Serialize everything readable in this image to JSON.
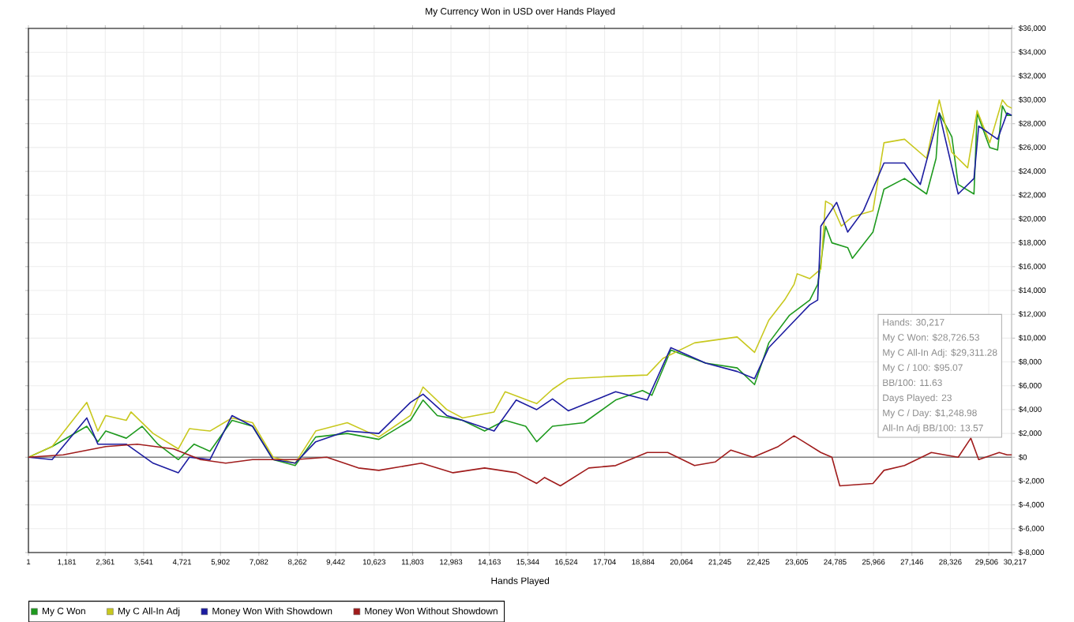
{
  "chart_data": {
    "type": "line",
    "title": "My Currency Won in USD over Hands Played",
    "xlabel": "Hands Played",
    "xlim": [
      1,
      30217
    ],
    "xticks": [
      {
        "value": 1,
        "label": "1"
      },
      {
        "value": 1181,
        "label": "1,181"
      },
      {
        "value": 2361,
        "label": "2,361"
      },
      {
        "value": 3541,
        "label": "3,541"
      },
      {
        "value": 4721,
        "label": "4,721"
      },
      {
        "value": 5902,
        "label": "5,902"
      },
      {
        "value": 7082,
        "label": "7,082"
      },
      {
        "value": 8262,
        "label": "8,262"
      },
      {
        "value": 9442,
        "label": "9,442"
      },
      {
        "value": 10623,
        "label": "10,623"
      },
      {
        "value": 11803,
        "label": "11,803"
      },
      {
        "value": 12983,
        "label": "12,983"
      },
      {
        "value": 14163,
        "label": "14,163"
      },
      {
        "value": 15344,
        "label": "15,344"
      },
      {
        "value": 16524,
        "label": "16,524"
      },
      {
        "value": 17704,
        "label": "17,704"
      },
      {
        "value": 18884,
        "label": "18,884"
      },
      {
        "value": 20064,
        "label": "20,064"
      },
      {
        "value": 21245,
        "label": "21,245"
      },
      {
        "value": 22425,
        "label": "22,425"
      },
      {
        "value": 23605,
        "label": "23,605"
      },
      {
        "value": 24785,
        "label": "24,785"
      },
      {
        "value": 25966,
        "label": "25,966"
      },
      {
        "value": 27146,
        "label": "27,146"
      },
      {
        "value": 28326,
        "label": "28,326"
      },
      {
        "value": 29506,
        "label": "29,506"
      },
      {
        "value": 30217,
        "label": "30,217"
      }
    ],
    "ylim": [
      -8000,
      36000
    ],
    "yticks": [
      {
        "value": -8000,
        "label": "$-8,000"
      },
      {
        "value": -6000,
        "label": "$-6,000"
      },
      {
        "value": -4000,
        "label": "$-4,000"
      },
      {
        "value": -2000,
        "label": "$-2,000"
      },
      {
        "value": 0,
        "label": "$0"
      },
      {
        "value": 2000,
        "label": "$2,000"
      },
      {
        "value": 4000,
        "label": "$4,000"
      },
      {
        "value": 6000,
        "label": "$6,000"
      },
      {
        "value": 8000,
        "label": "$8,000"
      },
      {
        "value": 10000,
        "label": "$10,000"
      },
      {
        "value": 12000,
        "label": "$12,000"
      },
      {
        "value": 14000,
        "label": "$14,000"
      },
      {
        "value": 16000,
        "label": "$16,000"
      },
      {
        "value": 18000,
        "label": "$18,000"
      },
      {
        "value": 20000,
        "label": "$20,000"
      },
      {
        "value": 22000,
        "label": "$22,000"
      },
      {
        "value": 24000,
        "label": "$24,000"
      },
      {
        "value": 26000,
        "label": "$26,000"
      },
      {
        "value": 28000,
        "label": "$28,000"
      },
      {
        "value": 30000,
        "label": "$30,000"
      },
      {
        "value": 32000,
        "label": "$32,000"
      },
      {
        "value": 34000,
        "label": "$34,000"
      },
      {
        "value": 36000,
        "label": "$36,000"
      }
    ],
    "grid": true,
    "legend": "bottom",
    "marker": "none",
    "line_style": "solid",
    "ref_lines": [
      {
        "axis": "y",
        "value": 0,
        "color": "#808080"
      }
    ],
    "annotations": [
      "Hands: 30,217",
      "My C Won: $28,726.53",
      "My C All-In Adj: $29,311.28",
      "My C / 100: $95.07",
      "BB/100: 11.63",
      "Days Played: 23",
      "My C / Day: $1,248.98",
      "All-In Adj BB/100: 13.57"
    ],
    "series": [
      {
        "name": "My C Won",
        "color": "#1f9a1f",
        "x": [
          1,
          728,
          1795,
          2134,
          2377,
          3007,
          3492,
          3977,
          4608,
          5093,
          5578,
          6257,
          6887,
          7518,
          8197,
          8827,
          9797,
          10767,
          11737,
          12125,
          12562,
          13338,
          14017,
          14647,
          15278,
          15617,
          16102,
          17072,
          18042,
          18867,
          19158,
          19740,
          20807,
          21777,
          22310,
          22747,
          23377,
          24008,
          24250,
          24347,
          24493,
          24687,
          25172,
          25317,
          25948,
          26287,
          26918,
          27597,
          27888,
          27985,
          28373,
          28567,
          29052,
          29149,
          29537,
          29779,
          29925,
          30070,
          30217
        ],
        "values": [
          0,
          900,
          2600,
          1300,
          2200,
          1600,
          2600,
          1100,
          -200,
          1100,
          500,
          3100,
          2600,
          -200,
          -700,
          1700,
          2000,
          1500,
          3100,
          4800,
          3500,
          3100,
          2200,
          3100,
          2600,
          1300,
          2600,
          2900,
          4800,
          5600,
          5200,
          9000,
          7900,
          7500,
          6100,
          9600,
          11900,
          13200,
          14500,
          16300,
          19400,
          18000,
          17600,
          16700,
          18900,
          22500,
          23400,
          22100,
          25100,
          28900,
          26900,
          22900,
          22100,
          28900,
          26000,
          25800,
          29500,
          28700,
          28700
        ]
      },
      {
        "name": "My C All-In Adj",
        "color": "#c8c81e",
        "x": [
          1,
          728,
          1795,
          2134,
          2377,
          3007,
          3153,
          3832,
          4608,
          4947,
          5578,
          6257,
          6887,
          7518,
          8197,
          8827,
          9797,
          10767,
          11737,
          12125,
          12853,
          13338,
          14308,
          14647,
          15617,
          16102,
          16587,
          18042,
          19012,
          19497,
          20467,
          21777,
          22310,
          22747,
          23232,
          23523,
          23620,
          24008,
          24347,
          24493,
          24687,
          24978,
          25317,
          25948,
          26287,
          26918,
          27597,
          27985,
          28373,
          28858,
          29149,
          29537,
          29925,
          30070,
          30217
        ],
        "values": [
          0,
          900,
          4600,
          2200,
          3500,
          3100,
          3800,
          2000,
          700,
          2400,
          2200,
          3300,
          2900,
          0,
          -500,
          2200,
          2900,
          1700,
          3500,
          5900,
          4000,
          3300,
          3800,
          5500,
          4500,
          5700,
          6600,
          6800,
          6900,
          8300,
          9600,
          10100,
          8800,
          11500,
          13200,
          14500,
          15400,
          15000,
          15800,
          21500,
          21200,
          19400,
          20200,
          20700,
          26400,
          26700,
          25100,
          30000,
          25600,
          24300,
          29100,
          26400,
          30000,
          29500,
          29300
        ]
      },
      {
        "name": "Money Won With Showdown",
        "color": "#1c1ca0",
        "x": [
          1,
          728,
          1795,
          2134,
          3007,
          3832,
          4608,
          4947,
          5578,
          6257,
          6887,
          7518,
          8197,
          8827,
          9797,
          10767,
          11737,
          12125,
          12853,
          13338,
          14308,
          14987,
          15617,
          16102,
          16587,
          18042,
          19012,
          19740,
          20807,
          21777,
          22310,
          22747,
          23377,
          24008,
          24250,
          24347,
          24832,
          25172,
          25657,
          26287,
          26918,
          27403,
          27985,
          28567,
          29052,
          29197,
          29779,
          30070,
          30217
        ],
        "values": [
          0,
          -200,
          3300,
          1100,
          1100,
          -500,
          -1300,
          0,
          -200,
          3500,
          2600,
          -200,
          -500,
          1300,
          2200,
          2000,
          4600,
          5300,
          3500,
          3100,
          2200,
          4800,
          4000,
          4900,
          3900,
          5500,
          4800,
          9200,
          7900,
          7200,
          6600,
          9200,
          11000,
          12800,
          13200,
          19400,
          21400,
          18900,
          20700,
          24700,
          24700,
          22900,
          28900,
          22100,
          23400,
          27800,
          26700,
          28900,
          28700
        ]
      },
      {
        "name": "Money Won Without Showdown",
        "color": "#a01c1c",
        "x": [
          1,
          1068,
          2377,
          3347,
          4463,
          5287,
          6063,
          6887,
          8197,
          9167,
          10137,
          10767,
          12077,
          13047,
          14017,
          14987,
          15617,
          15860,
          16345,
          17218,
          18042,
          19012,
          19643,
          20467,
          21098,
          21583,
          22262,
          23038,
          23523,
          24347,
          24687,
          24929,
          25948,
          26287,
          26918,
          27742,
          28567,
          28955,
          29197,
          29828,
          30070,
          30217
        ],
        "values": [
          0,
          200,
          900,
          1100,
          700,
          -200,
          -500,
          -200,
          -200,
          0,
          -900,
          -1100,
          -500,
          -1300,
          -900,
          -1300,
          -2200,
          -1700,
          -2400,
          -900,
          -700,
          400,
          400,
          -700,
          -400,
          600,
          0,
          900,
          1800,
          400,
          0,
          -2400,
          -2200,
          -1100,
          -700,
          400,
          0,
          1600,
          -200,
          400,
          200,
          200
        ]
      }
    ]
  }
}
